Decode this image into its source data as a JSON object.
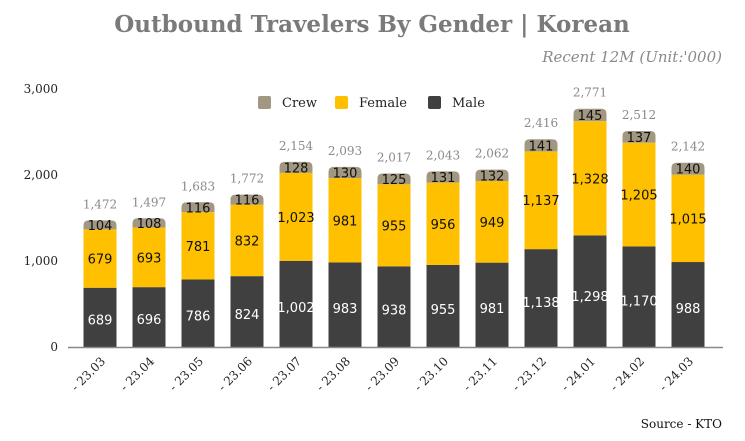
{
  "chart_data": {
    "type": "bar",
    "stacked": true,
    "title": "Outbound Travelers By Gender | Korean",
    "subtitle": "Recent 12M (Unit:'000)",
    "source": "Source - KTO",
    "categories": [
      "- 23.03",
      "- 23.04",
      "- 23.05",
      "- 23.06",
      "- 23.07",
      "- 23.08",
      "- 23.09",
      "- 23.10",
      "- 23.11",
      "- 23.12",
      "- 24.01",
      "- 24.02",
      "- 24.03"
    ],
    "series": [
      {
        "name": "Male",
        "color": "#404040",
        "label_color": "#ffffff",
        "values": [
          689,
          696,
          786,
          824,
          1002,
          983,
          938,
          955,
          981,
          1138,
          1298,
          1170,
          988
        ]
      },
      {
        "name": "Female",
        "color": "#ffc000",
        "label_color": "#111111",
        "values": [
          679,
          693,
          781,
          832,
          1023,
          981,
          955,
          956,
          949,
          1137,
          1328,
          1205,
          1015
        ]
      },
      {
        "name": "Crew",
        "color": "#a29882",
        "label_color": "#111111",
        "values": [
          104,
          108,
          116,
          116,
          128,
          130,
          125,
          131,
          132,
          141,
          145,
          137,
          140
        ]
      }
    ],
    "totals": [
      1472,
      1497,
      1683,
      1772,
      2154,
      2093,
      2017,
      2043,
      2062,
      2416,
      2771,
      2512,
      2142
    ],
    "yticks": [
      0,
      1000,
      2000,
      3000
    ],
    "ylim": [
      0,
      3000
    ],
    "legend_order": [
      "Crew",
      "Female",
      "Male"
    ],
    "legend_position": "top",
    "grid": false
  }
}
